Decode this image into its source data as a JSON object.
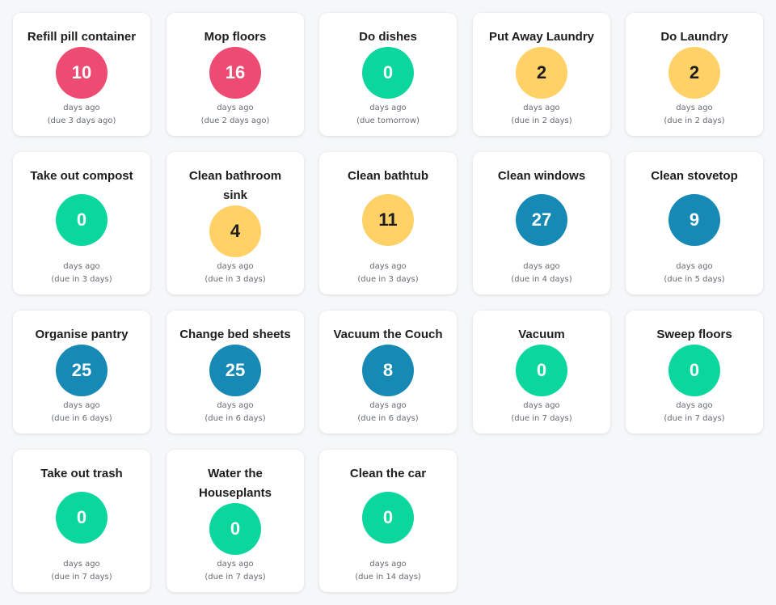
{
  "colors": {
    "overdue": "#ee4b73",
    "ok": "#0bd69e",
    "soon": "#ffd166",
    "later": "#1689b4",
    "background": "#f6f7f9"
  },
  "chores": [
    {
      "title": "Refill pill container",
      "days": "10",
      "label": "days ago",
      "due": "(due 3 days ago)",
      "status": "red"
    },
    {
      "title": "Mop floors",
      "days": "16",
      "label": "days ago",
      "due": "(due 2 days ago)",
      "status": "red"
    },
    {
      "title": "Do dishes",
      "days": "0",
      "label": "days ago",
      "due": "(due tomorrow)",
      "status": "green"
    },
    {
      "title": "Put Away Laundry",
      "days": "2",
      "label": "days ago",
      "due": "(due in 2 days)",
      "status": "yellow"
    },
    {
      "title": "Do Laundry",
      "days": "2",
      "label": "days ago",
      "due": "(due in 2 days)",
      "status": "yellow"
    },
    {
      "title": "Take out compost",
      "days": "0",
      "label": "days ago",
      "due": "(due in 3 days)",
      "status": "green"
    },
    {
      "title": "Clean bathroom sink",
      "days": "4",
      "label": "days ago",
      "due": "(due in 3 days)",
      "status": "yellow"
    },
    {
      "title": "Clean bathtub",
      "days": "11",
      "label": "days ago",
      "due": "(due in 3 days)",
      "status": "yellow"
    },
    {
      "title": "Clean windows",
      "days": "27",
      "label": "days ago",
      "due": "(due in 4 days)",
      "status": "blue"
    },
    {
      "title": "Clean stovetop",
      "days": "9",
      "label": "days ago",
      "due": "(due in 5 days)",
      "status": "blue"
    },
    {
      "title": "Organise pantry",
      "days": "25",
      "label": "days ago",
      "due": "(due in 6 days)",
      "status": "blue"
    },
    {
      "title": "Change bed sheets",
      "days": "25",
      "label": "days ago",
      "due": "(due in 6 days)",
      "status": "blue"
    },
    {
      "title": "Vacuum the Couch",
      "days": "8",
      "label": "days ago",
      "due": "(due in 6 days)",
      "status": "blue"
    },
    {
      "title": "Vacuum",
      "days": "0",
      "label": "days ago",
      "due": "(due in 7 days)",
      "status": "green"
    },
    {
      "title": "Sweep floors",
      "days": "0",
      "label": "days ago",
      "due": "(due in 7 days)",
      "status": "green"
    },
    {
      "title": "Take out trash",
      "days": "0",
      "label": "days ago",
      "due": "(due in 7 days)",
      "status": "green"
    },
    {
      "title": "Water the Houseplants",
      "days": "0",
      "label": "days ago",
      "due": "(due in 7 days)",
      "status": "green"
    },
    {
      "title": "Clean the car",
      "days": "0",
      "label": "days ago",
      "due": "(due in 14 days)",
      "status": "green"
    }
  ]
}
